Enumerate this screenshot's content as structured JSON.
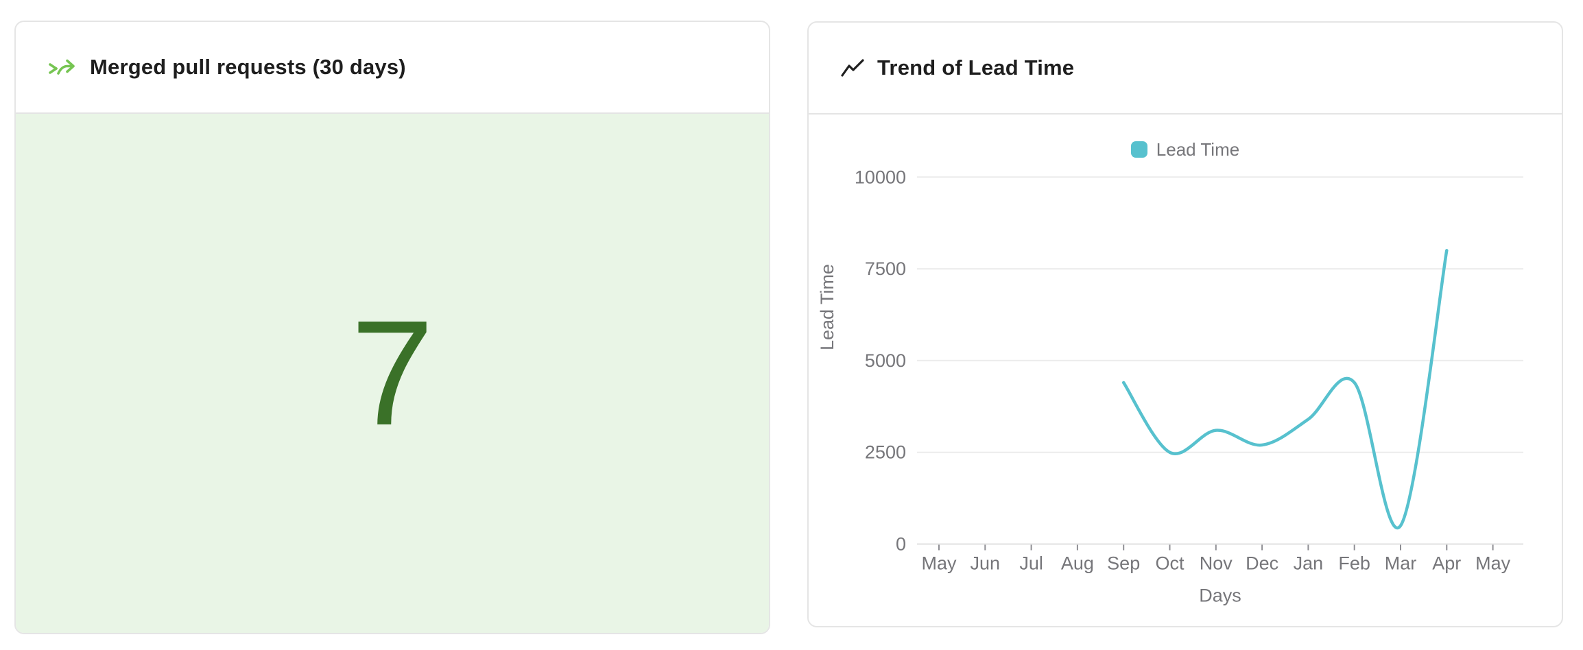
{
  "page": {
    "background": "#ffffff"
  },
  "merged_prs_card": {
    "title": "Merged pull requests (30 days)",
    "value": "7",
    "colors": {
      "icon": "#76c552",
      "value": "#3a7128",
      "value_bg": "#e9f5e6"
    }
  },
  "lead_time_card": {
    "title": "Trend of Lead Time",
    "legend": [
      {
        "label": "Lead Time",
        "color": "#57c1ce"
      }
    ]
  },
  "chart_data": {
    "type": "line",
    "title": "Trend of Lead Time",
    "xlabel": "Days",
    "ylabel": "Lead Time",
    "categories": [
      "May",
      "Jun",
      "Jul",
      "Aug",
      "Sep",
      "Oct",
      "Nov",
      "Dec",
      "Jan",
      "Feb",
      "Mar",
      "Apr",
      "May"
    ],
    "series": [
      {
        "name": "Lead Time",
        "color": "#57c1ce",
        "values": [
          null,
          null,
          null,
          null,
          4400,
          2500,
          3100,
          2700,
          3400,
          4400,
          500,
          8000,
          null
        ]
      }
    ],
    "ylim": [
      0,
      10000
    ],
    "yticks": [
      0,
      2500,
      5000,
      7500,
      10000
    ],
    "grid": true,
    "legend_position": "top",
    "smooth": true,
    "colors": {
      "gridline": "#ececec",
      "axis_line": "#e0e0e0",
      "tick": "#8f8f94",
      "label_text": "#76767a"
    }
  }
}
